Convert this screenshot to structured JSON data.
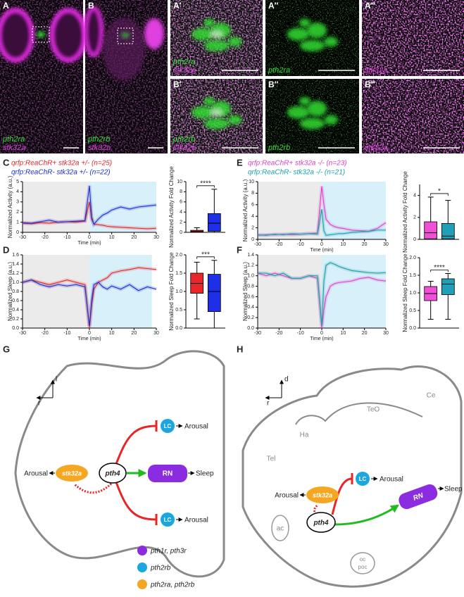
{
  "panels": [
    {
      "letter": "A",
      "labels": [
        {
          "text": "pth2ra",
          "color": "#33dd33"
        },
        {
          "text": "stk32a",
          "color": "#e040e0"
        }
      ]
    },
    {
      "letter": "B",
      "labels": [
        {
          "text": "pth2rb",
          "color": "#33dd33"
        },
        {
          "text": "stk32a",
          "color": "#e040e0"
        }
      ]
    },
    {
      "letter": "A′",
      "labels": [
        {
          "text": "pth2ra",
          "color": "#33dd33"
        },
        {
          "text": "stk32a",
          "color": "#e040e0"
        }
      ]
    },
    {
      "letter": "A″",
      "labels": [
        {
          "text": "pth2ra",
          "color": "#33dd33"
        }
      ]
    },
    {
      "letter": "A‴",
      "labels": [
        {
          "text": "stk32a",
          "color": "#e040e0"
        }
      ]
    },
    {
      "letter": "B′",
      "labels": [
        {
          "text": "pth2rb",
          "color": "#33dd33"
        },
        {
          "text": "stk32a",
          "color": "#e040e0"
        }
      ]
    },
    {
      "letter": "B″",
      "labels": [
        {
          "text": "pth2rb",
          "color": "#33dd33"
        }
      ]
    },
    {
      "letter": "B‴",
      "labels": [
        {
          "text": "stk32a",
          "color": "#e040e0"
        }
      ]
    }
  ],
  "chart_data": [
    {
      "type": "line",
      "letter": "C",
      "ylabel": "Normalized Activity (a.u.)",
      "xlabel": "Time (min)",
      "xlim": [
        -30,
        30
      ],
      "xticks": [
        -30,
        -20,
        -10,
        0,
        10,
        20,
        30
      ],
      "ylim": [
        0,
        5
      ],
      "yticks": [
        0,
        1,
        2,
        3,
        4,
        5
      ],
      "regions": [
        {
          "from": -30,
          "to": 0,
          "color": "#ebebeb"
        },
        {
          "from": 0,
          "to": 30,
          "color": "#d8f0fa"
        }
      ],
      "x": [
        -30,
        -26,
        -22,
        -18,
        -14,
        -10,
        -6,
        -2,
        0,
        1,
        2,
        4,
        6,
        8,
        10,
        14,
        18,
        22,
        26,
        30
      ],
      "series": [
        {
          "name": "qrfp:ReaChR+ stk32a +/- (n=25)",
          "color": "#e8262a",
          "values": [
            0.9,
            0.85,
            0.95,
            0.9,
            1.0,
            1.05,
            1.0,
            1.1,
            3.0,
            1.3,
            0.8,
            0.75,
            0.7,
            0.6,
            0.55,
            0.5,
            0.45,
            0.4,
            0.35,
            0.4
          ]
        },
        {
          "name": "qrfp:ReaChR- stk32a +/- (n=22)",
          "color": "#1f2fc8",
          "values": [
            0.95,
            0.9,
            1.05,
            1.2,
            1.0,
            1.05,
            1.1,
            1.15,
            4.6,
            1.5,
            0.8,
            1.3,
            1.7,
            1.9,
            2.2,
            2.5,
            2.3,
            2.5,
            2.6,
            2.7
          ]
        }
      ]
    },
    {
      "type": "box",
      "ylabel": "Normalized Activity Fold Change",
      "ylim": [
        0,
        10
      ],
      "yticks": [
        0,
        2,
        4,
        6,
        8,
        10
      ],
      "significance": "****",
      "boxes": [
        {
          "color": "#e8262a",
          "min": 0,
          "q1": 0.05,
          "median": 0.15,
          "q3": 0.4,
          "max": 0.9
        },
        {
          "color": "#1f2fe8",
          "min": 0,
          "q1": 0.2,
          "median": 1.8,
          "q3": 3.7,
          "max": 8.5
        }
      ]
    },
    {
      "type": "line",
      "letter": "D",
      "ylabel": "Normalized Sleep (a.u.)",
      "xlabel": "Time (min)",
      "xlim": [
        -30,
        30
      ],
      "xticks": [
        -30,
        -20,
        -10,
        0,
        10,
        20,
        30
      ],
      "ylim": [
        0,
        1.6
      ],
      "yticks": [
        {
          "value": 0,
          "label": "0.0"
        },
        0.2,
        0.4,
        0.6,
        0.8,
        {
          "value": 1,
          "label": "1.0"
        },
        1.2,
        1.4,
        1.6
      ],
      "regions": [
        {
          "from": -30,
          "to": 0,
          "color": "#ebebeb"
        },
        {
          "from": 0,
          "to": 28,
          "color": "#d8f0fa"
        }
      ],
      "x": [
        -30,
        -26,
        -22,
        -18,
        -14,
        -10,
        -6,
        -2,
        0,
        1,
        2,
        4,
        6,
        8,
        10,
        14,
        18,
        22,
        26,
        30
      ],
      "series": [
        {
          "name": null,
          "color": "#e8262a",
          "values": [
            1.0,
            1.05,
            1.0,
            0.95,
            1.0,
            1.05,
            1.0,
            0.95,
            0.0,
            0.5,
            0.85,
            1.0,
            1.05,
            1.1,
            1.2,
            1.25,
            1.28,
            1.32,
            1.3,
            1.28
          ]
        },
        {
          "name": null,
          "color": "#1f2fc8",
          "values": [
            1.0,
            1.05,
            0.95,
            0.9,
            0.95,
            0.92,
            0.95,
            0.9,
            0.05,
            0.6,
            0.95,
            1.0,
            0.9,
            0.85,
            0.92,
            0.85,
            0.95,
            0.82,
            0.9,
            0.85
          ]
        }
      ]
    },
    {
      "type": "box",
      "ylabel": "Normalized Sleep Fold Change",
      "ylim": [
        0,
        2
      ],
      "yticks": [
        {
          "value": 0,
          "label": "0.0"
        },
        0.5,
        {
          "value": 1,
          "label": "1.0"
        },
        1.5,
        {
          "value": 2,
          "label": "2.0"
        }
      ],
      "significance": "***",
      "boxes": [
        {
          "color": "#e8262a",
          "min": 0.25,
          "q1": 0.95,
          "median": 1.22,
          "q3": 1.5,
          "max": 1.8
        },
        {
          "color": "#1f2fe8",
          "min": 0,
          "q1": 0.45,
          "median": 1.0,
          "q3": 1.47,
          "max": 1.85
        }
      ]
    },
    {
      "type": "line",
      "letter": "E",
      "ylabel": "Normalized Activity (a.u.)",
      "xlabel": "Time (min)",
      "xlim": [
        -30,
        30
      ],
      "xticks": [
        -30,
        -20,
        -10,
        0,
        10,
        20,
        30
      ],
      "ylim": [
        0,
        10
      ],
      "yticks": [
        0,
        2,
        4,
        6,
        8,
        10
      ],
      "regions": [
        {
          "from": -30,
          "to": 0,
          "color": "#ebebeb"
        },
        {
          "from": 0,
          "to": 30,
          "color": "#d8f0fa"
        }
      ],
      "x": [
        -30,
        -26,
        -22,
        -18,
        -14,
        -10,
        -6,
        -2,
        0,
        1,
        2,
        4,
        6,
        8,
        10,
        14,
        18,
        22,
        26,
        30
      ],
      "series": [
        {
          "name": "qrfp:ReaChR+ stk32a -/- (n=23)",
          "color": "#e040c8",
          "values": [
            0.7,
            0.8,
            0.8,
            0.9,
            0.8,
            0.9,
            1.0,
            1.1,
            9.2,
            6.0,
            3.5,
            2.6,
            2.2,
            2.0,
            1.9,
            1.6,
            1.5,
            1.4,
            1.9,
            2.9
          ]
        },
        {
          "name": "qrfp:ReaChR- stk32a -/- (n=21)",
          "color": "#1fa0a8",
          "values": [
            0.8,
            0.7,
            0.9,
            0.8,
            1.0,
            0.9,
            1.0,
            0.9,
            5.2,
            1.5,
            0.7,
            0.8,
            0.9,
            1.0,
            1.0,
            1.2,
            1.3,
            1.4,
            1.6,
            1.6
          ]
        }
      ]
    },
    {
      "type": "box",
      "ylabel": "Normalized Activity Fold Change",
      "ylim": [
        0,
        5
      ],
      "yticks": [
        0,
        2,
        4
      ],
      "significance": "*",
      "boxes": [
        {
          "color": "#f050d8",
          "min": 0,
          "q1": 0.05,
          "median": 0.6,
          "q3": 1.6,
          "max": 3.85
        },
        {
          "color": "#1fa0b8",
          "min": 0,
          "q1": 0.05,
          "median": 0.3,
          "q3": 1.45,
          "max": 3.55
        }
      ]
    },
    {
      "type": "line",
      "letter": "F",
      "ylabel": "Normalized Sleep (a.u.)",
      "xlabel": "Time (min)",
      "xlim": [
        -30,
        30
      ],
      "xticks": [
        -30,
        -20,
        -10,
        0,
        10,
        20,
        30
      ],
      "ylim": [
        0,
        1.4
      ],
      "yticks": [
        {
          "value": 0,
          "label": "0.0"
        },
        0.2,
        0.4,
        0.6,
        0.8,
        {
          "value": 1,
          "label": "1.0"
        },
        1.2,
        1.4
      ],
      "regions": [
        {
          "from": -30,
          "to": 0,
          "color": "#ebebeb"
        },
        {
          "from": 0,
          "to": 30,
          "color": "#d8f0fa"
        }
      ],
      "x": [
        -30,
        -26,
        -22,
        -18,
        -14,
        -10,
        -6,
        -2,
        0,
        1,
        2,
        4,
        6,
        8,
        10,
        14,
        18,
        22,
        26,
        30
      ],
      "series": [
        {
          "name": null,
          "color": "#e040c8",
          "values": [
            1.05,
            1.0,
            1.05,
            1.0,
            0.95,
            0.95,
            1.0,
            0.95,
            0.0,
            0.35,
            0.6,
            0.8,
            0.85,
            0.87,
            0.88,
            0.9,
            0.95,
            0.97,
            0.92,
            0.9
          ]
        },
        {
          "name": null,
          "color": "#1fa0a8",
          "values": [
            1.05,
            1.05,
            1.0,
            1.05,
            0.95,
            0.95,
            1.0,
            1.0,
            0.05,
            0.9,
            1.2,
            1.25,
            1.22,
            1.18,
            1.15,
            1.1,
            1.08,
            1.06,
            1.05,
            1.06
          ]
        }
      ]
    },
    {
      "type": "box",
      "ylabel": "Normalized Sleep Fold Change",
      "ylim": [
        0,
        2
      ],
      "yticks": [
        {
          "value": 0,
          "label": "0.0"
        },
        0.5,
        {
          "value": 1,
          "label": "1.0"
        },
        1.5,
        {
          "value": 2,
          "label": "2.0"
        }
      ],
      "significance": "****",
      "boxes": [
        {
          "color": "#f050d8",
          "min": 0.25,
          "q1": 0.78,
          "median": 0.98,
          "q3": 1.18,
          "max": 1.33
        },
        {
          "color": "#1fa0b8",
          "min": 0.25,
          "q1": 0.95,
          "median": 1.25,
          "q3": 1.4,
          "max": 1.55
        }
      ]
    }
  ],
  "diagrams": {
    "G": {
      "letter": "G",
      "axis_up": "l",
      "axis_left": "r",
      "lc_1": "LC",
      "arousal_1": "Arousal",
      "rn": "RN",
      "sleep": "Sleep",
      "pth4": "pth4",
      "stk32a": "stk32a",
      "arousal_left": "Arousal",
      "lc_2": "LC",
      "arousal_2": "Arousal",
      "legend": [
        "pth1r, pth3r",
        "pth2rb",
        "pth2ra, pth2rb"
      ]
    },
    "H": {
      "letter": "H",
      "axis_up": "d",
      "axis_left": "r",
      "teo": "TeO",
      "ce": "Ce",
      "ha": "Ha",
      "tel": "Tel",
      "lc": "LC",
      "arousal": "Arousal",
      "stk32a": "stk32a",
      "arousal_left": "Arousal",
      "pth4": "pth4",
      "rn": "RN",
      "sleep": "Sleep",
      "ac": "ac",
      "oc": "oc",
      "poc": "poc"
    }
  }
}
